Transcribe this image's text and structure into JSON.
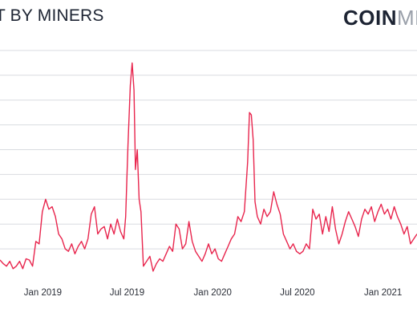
{
  "header": {
    "title": "T BY MINERS",
    "brand_strong": "COIN",
    "brand_light": "ME"
  },
  "colors": {
    "line": "#e8254d",
    "grid": "#d9dbe0",
    "tick_text": "#2b2f38",
    "title_text": "#1d2433",
    "brand_strong": "#1d2433",
    "brand_light": "#9aa0aa"
  },
  "chart_data": {
    "type": "line",
    "title": "T BY MINERS",
    "xlabel": "",
    "ylabel": "",
    "x_tick_labels": [
      "Jan 2019",
      "Jul 2019",
      "Jan 2020",
      "Jul 2020",
      "Jan 2021"
    ],
    "x_tick_dates": [
      "2019-01-01",
      "2019-07-01",
      "2020-01-01",
      "2020-07-01",
      "2021-01-01"
    ],
    "xlim": [
      "2018-10-01",
      "2021-03-15"
    ],
    "ylim": [
      0,
      9
    ],
    "y_gridlines": [
      1,
      2,
      3,
      4,
      5,
      6,
      7,
      8,
      9
    ],
    "y_tick_labels_visible": false,
    "grid": true,
    "series": [
      {
        "values": [
          [
            "2018-10-01",
            0.55
          ],
          [
            "2018-10-08",
            0.4
          ],
          [
            "2018-10-15",
            0.3
          ],
          [
            "2018-10-22",
            0.5
          ],
          [
            "2018-10-29",
            0.2
          ],
          [
            "2018-11-05",
            0.3
          ],
          [
            "2018-11-12",
            0.5
          ],
          [
            "2018-11-19",
            0.2
          ],
          [
            "2018-11-26",
            0.6
          ],
          [
            "2018-12-03",
            0.55
          ],
          [
            "2018-12-10",
            0.3
          ],
          [
            "2018-12-17",
            1.3
          ],
          [
            "2018-12-24",
            1.2
          ],
          [
            "2018-12-31",
            2.5
          ],
          [
            "2019-01-07",
            3.0
          ],
          [
            "2019-01-14",
            2.6
          ],
          [
            "2019-01-21",
            2.7
          ],
          [
            "2019-01-28",
            2.3
          ],
          [
            "2019-02-04",
            1.6
          ],
          [
            "2019-02-11",
            1.4
          ],
          [
            "2019-02-18",
            1.0
          ],
          [
            "2019-02-25",
            0.9
          ],
          [
            "2019-03-04",
            1.2
          ],
          [
            "2019-03-11",
            0.8
          ],
          [
            "2019-03-18",
            1.1
          ],
          [
            "2019-03-25",
            1.3
          ],
          [
            "2019-04-01",
            1.0
          ],
          [
            "2019-04-08",
            1.4
          ],
          [
            "2019-04-15",
            2.4
          ],
          [
            "2019-04-22",
            2.7
          ],
          [
            "2019-04-29",
            1.6
          ],
          [
            "2019-05-06",
            1.8
          ],
          [
            "2019-05-13",
            1.9
          ],
          [
            "2019-05-20",
            1.4
          ],
          [
            "2019-05-27",
            2.0
          ],
          [
            "2019-06-03",
            1.6
          ],
          [
            "2019-06-10",
            2.2
          ],
          [
            "2019-06-17",
            1.7
          ],
          [
            "2019-06-24",
            1.4
          ],
          [
            "2019-06-28",
            2.3
          ],
          [
            "2019-07-03",
            5.2
          ],
          [
            "2019-07-08",
            7.6
          ],
          [
            "2019-07-12",
            8.5
          ],
          [
            "2019-07-16",
            7.4
          ],
          [
            "2019-07-19",
            4.2
          ],
          [
            "2019-07-23",
            5.0
          ],
          [
            "2019-07-27",
            3.0
          ],
          [
            "2019-07-31",
            2.5
          ],
          [
            "2019-08-05",
            0.3
          ],
          [
            "2019-08-12",
            0.5
          ],
          [
            "2019-08-19",
            0.7
          ],
          [
            "2019-08-26",
            0.1
          ],
          [
            "2019-09-02",
            0.4
          ],
          [
            "2019-09-09",
            0.6
          ],
          [
            "2019-09-16",
            0.5
          ],
          [
            "2019-09-23",
            0.8
          ],
          [
            "2019-09-30",
            1.1
          ],
          [
            "2019-10-07",
            0.9
          ],
          [
            "2019-10-14",
            2.0
          ],
          [
            "2019-10-21",
            1.8
          ],
          [
            "2019-10-28",
            1.0
          ],
          [
            "2019-11-04",
            1.2
          ],
          [
            "2019-11-11",
            2.1
          ],
          [
            "2019-11-18",
            1.3
          ],
          [
            "2019-11-25",
            0.9
          ],
          [
            "2019-12-02",
            0.7
          ],
          [
            "2019-12-09",
            0.5
          ],
          [
            "2019-12-16",
            0.8
          ],
          [
            "2019-12-23",
            1.2
          ],
          [
            "2019-12-30",
            0.8
          ],
          [
            "2020-01-06",
            1.0
          ],
          [
            "2020-01-13",
            0.6
          ],
          [
            "2020-01-20",
            0.5
          ],
          [
            "2020-01-27",
            0.8
          ],
          [
            "2020-02-03",
            1.1
          ],
          [
            "2020-02-10",
            1.4
          ],
          [
            "2020-02-17",
            1.6
          ],
          [
            "2020-02-24",
            2.3
          ],
          [
            "2020-03-02",
            2.1
          ],
          [
            "2020-03-09",
            2.5
          ],
          [
            "2020-03-16",
            4.5
          ],
          [
            "2020-03-20",
            6.5
          ],
          [
            "2020-03-24",
            6.4
          ],
          [
            "2020-03-28",
            5.4
          ],
          [
            "2020-04-01",
            2.9
          ],
          [
            "2020-04-06",
            2.3
          ],
          [
            "2020-04-13",
            2.0
          ],
          [
            "2020-04-20",
            2.6
          ],
          [
            "2020-04-27",
            2.3
          ],
          [
            "2020-05-04",
            2.5
          ],
          [
            "2020-05-11",
            3.3
          ],
          [
            "2020-05-18",
            2.8
          ],
          [
            "2020-05-25",
            2.4
          ],
          [
            "2020-06-01",
            1.6
          ],
          [
            "2020-06-08",
            1.3
          ],
          [
            "2020-06-15",
            1.0
          ],
          [
            "2020-06-22",
            1.2
          ],
          [
            "2020-06-29",
            0.9
          ],
          [
            "2020-07-06",
            0.8
          ],
          [
            "2020-07-13",
            0.9
          ],
          [
            "2020-07-20",
            1.2
          ],
          [
            "2020-07-27",
            1.0
          ],
          [
            "2020-08-03",
            2.6
          ],
          [
            "2020-08-10",
            2.2
          ],
          [
            "2020-08-17",
            2.4
          ],
          [
            "2020-08-24",
            1.6
          ],
          [
            "2020-08-31",
            2.3
          ],
          [
            "2020-09-07",
            1.7
          ],
          [
            "2020-09-14",
            2.7
          ],
          [
            "2020-09-21",
            1.8
          ],
          [
            "2020-09-28",
            1.2
          ],
          [
            "2020-10-05",
            1.6
          ],
          [
            "2020-10-12",
            2.1
          ],
          [
            "2020-10-19",
            2.5
          ],
          [
            "2020-10-26",
            2.2
          ],
          [
            "2020-11-02",
            1.9
          ],
          [
            "2020-11-09",
            1.5
          ],
          [
            "2020-11-16",
            2.2
          ],
          [
            "2020-11-23",
            2.6
          ],
          [
            "2020-11-30",
            2.4
          ],
          [
            "2020-12-07",
            2.7
          ],
          [
            "2020-12-14",
            2.1
          ],
          [
            "2020-12-21",
            2.5
          ],
          [
            "2020-12-28",
            2.8
          ],
          [
            "2021-01-04",
            2.4
          ],
          [
            "2021-01-11",
            2.6
          ],
          [
            "2021-01-18",
            2.2
          ],
          [
            "2021-01-25",
            2.7
          ],
          [
            "2021-02-01",
            2.3
          ],
          [
            "2021-02-08",
            2.0
          ],
          [
            "2021-02-15",
            1.6
          ],
          [
            "2021-02-22",
            1.9
          ],
          [
            "2021-03-01",
            1.2
          ],
          [
            "2021-03-08",
            1.4
          ],
          [
            "2021-03-15",
            1.6
          ]
        ]
      }
    ]
  }
}
